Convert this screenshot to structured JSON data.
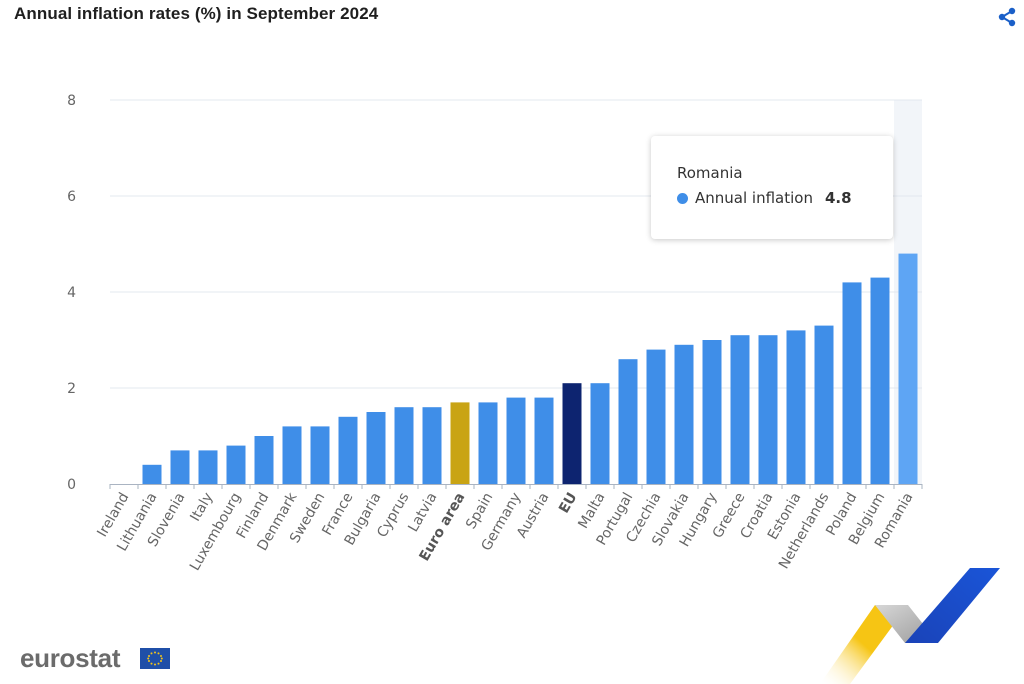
{
  "header": {
    "title": "Annual inflation rates (%) in September 2024"
  },
  "icons": {
    "share": "share-icon",
    "logo_flag": "eu-flag-icon"
  },
  "colors": {
    "bar": "#3f8ee8",
    "bar_highlight": "#5ea5f4",
    "euro_area": "#c9a414",
    "eu": "#0d2470",
    "grid": "#e3e8ef",
    "axis_text": "#666666",
    "share": "#1a5fc8"
  },
  "tooltip": {
    "country": "Romania",
    "series_label": "Annual inflation",
    "value": "4.8"
  },
  "footer": {
    "logo_text": "eurostat"
  },
  "chart_data": {
    "type": "bar",
    "title": "Annual inflation rates (%) in September 2024",
    "xlabel": "",
    "ylabel": "",
    "ylim": [
      0,
      8
    ],
    "yticks": [
      0,
      2,
      4,
      6,
      8
    ],
    "grid": true,
    "categories": [
      "Ireland",
      "Lithuania",
      "Slovenia",
      "Italy",
      "Luxembourg",
      "Finland",
      "Denmark",
      "Sweden",
      "France",
      "Bulgaria",
      "Cyprus",
      "Latvia",
      "Euro area",
      "Spain",
      "Germany",
      "Austria",
      "EU",
      "Malta",
      "Portugal",
      "Czechia",
      "Slovakia",
      "Hungary",
      "Greece",
      "Croatia",
      "Estonia",
      "Netherlands",
      "Poland",
      "Belgium",
      "Romania"
    ],
    "series": [
      {
        "name": "Annual inflation",
        "values": [
          0.0,
          0.4,
          0.7,
          0.7,
          0.8,
          1.0,
          1.2,
          1.2,
          1.4,
          1.5,
          1.6,
          1.6,
          1.7,
          1.7,
          1.8,
          1.8,
          2.1,
          2.1,
          2.6,
          2.8,
          2.9,
          3.0,
          3.1,
          3.1,
          3.2,
          3.3,
          4.2,
          4.3,
          4.8
        ]
      }
    ],
    "emphasized_categories": [
      "Euro area",
      "EU"
    ],
    "highlighted_category": "Romania"
  }
}
